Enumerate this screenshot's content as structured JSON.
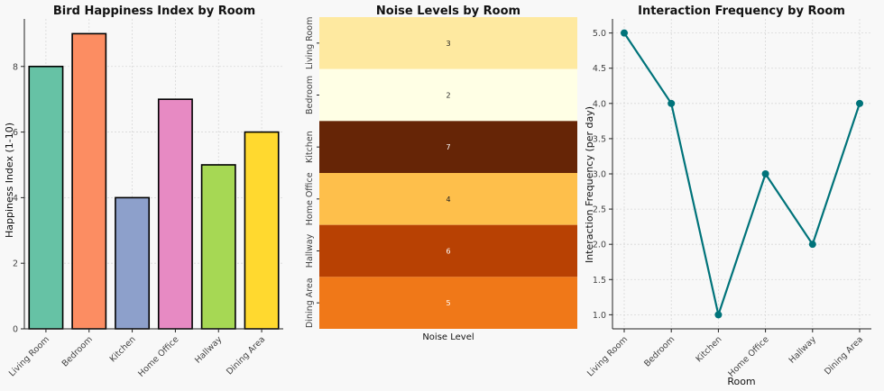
{
  "chart_data": [
    {
      "type": "bar",
      "title": "Bird Happiness Index by Room",
      "xlabel": "",
      "ylabel": "Happiness Index (1-10)",
      "categories": [
        "Living Room",
        "Bedroom",
        "Kitchen",
        "Home Office",
        "Hallway",
        "Dining Area"
      ],
      "values": [
        8,
        9,
        4,
        7,
        5,
        6
      ],
      "colors": [
        "#66c2a5",
        "#fc8d62",
        "#8da0cb",
        "#e78ac3",
        "#a6d854",
        "#ffd92f"
      ],
      "ylim": [
        0,
        9.45
      ],
      "yticks": [
        0,
        2,
        4,
        6,
        8
      ],
      "grid": true
    },
    {
      "type": "heatmap",
      "title": "Noise Levels by Room",
      "xlabel": "Noise Level",
      "ylabel": "",
      "categories": [
        "Living Room",
        "Bedroom",
        "Kitchen",
        "Home Office",
        "Hallway",
        "Dining Area"
      ],
      "values": [
        3,
        2,
        7,
        4,
        6,
        5
      ],
      "colors": [
        "#fee9a0",
        "#ffffe5",
        "#662506",
        "#febf4b",
        "#b84103",
        "#f07818"
      ],
      "text_colors": [
        "#222222",
        "#222222",
        "#ffffff",
        "#222222",
        "#ffffff",
        "#ffffff"
      ]
    },
    {
      "type": "line",
      "title": "Interaction Frequency by Room",
      "xlabel": "Room",
      "ylabel": "Interaction Frequency (per day)",
      "categories": [
        "Living Room",
        "Bedroom",
        "Kitchen",
        "Home Office",
        "Hallway",
        "Dining Area"
      ],
      "values": [
        5,
        4,
        1,
        3,
        2,
        4
      ],
      "color": "#00737a",
      "ylim": [
        0.8,
        5.2
      ],
      "yticks": [
        1.0,
        1.5,
        2.0,
        2.5,
        3.0,
        3.5,
        4.0,
        4.5,
        5.0
      ],
      "grid": true
    }
  ]
}
